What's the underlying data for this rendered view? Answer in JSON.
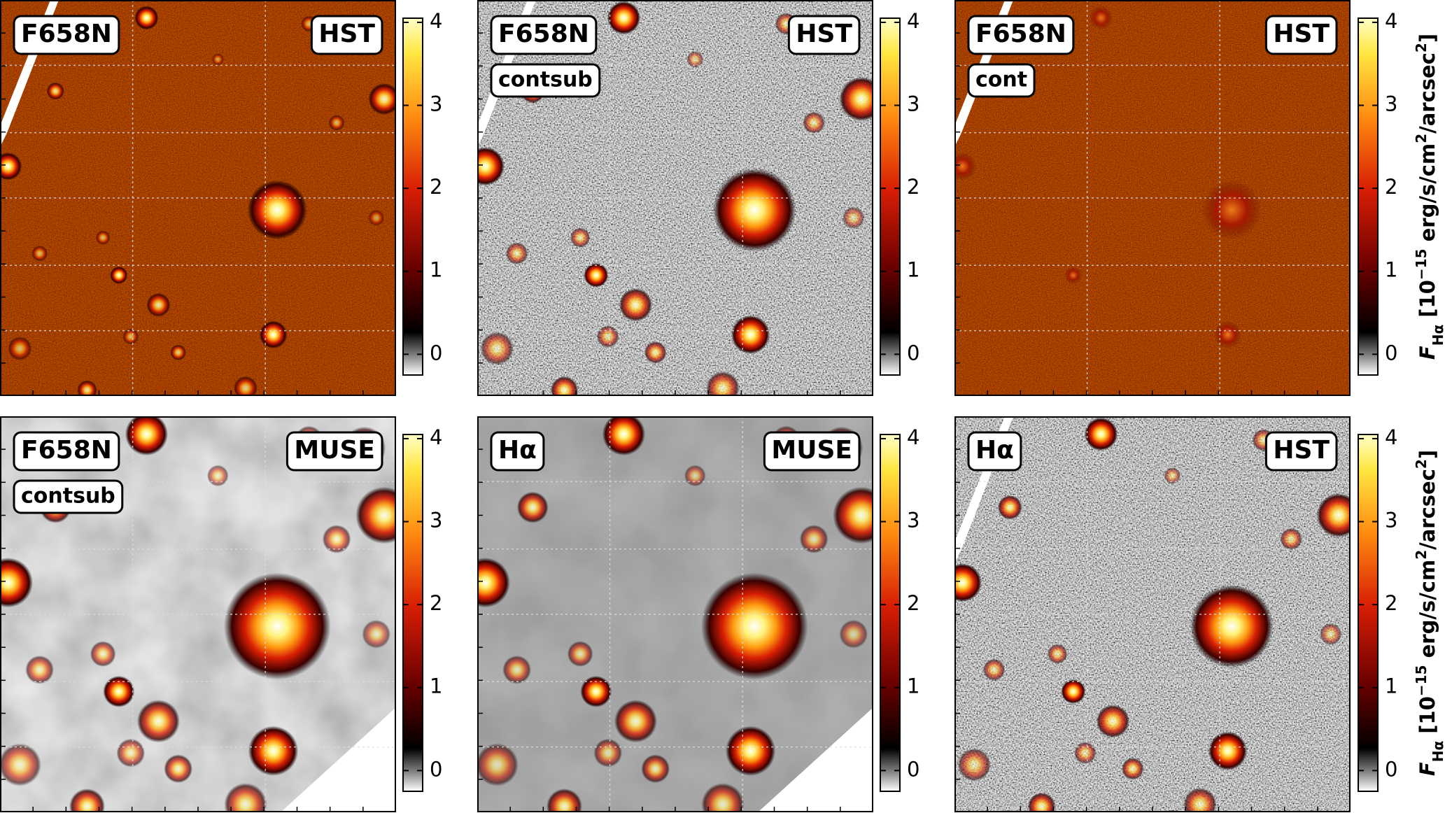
{
  "chart_data": [
    {
      "type": "image",
      "badge_left": "F658N",
      "badge_right": "HST",
      "background": "hst",
      "stripe": "top-left",
      "colorbar": {
        "lim": [
          -0.25,
          4.05
        ],
        "ticks": [
          0,
          1,
          2,
          3,
          4
        ]
      }
    },
    {
      "type": "image",
      "badge_left": "F658N",
      "badge_right": "HST",
      "badge_sub": "contsub",
      "background": "noise",
      "stripe": "top-left",
      "colorbar": {
        "lim": [
          -0.25,
          4.05
        ],
        "ticks": [
          0,
          1,
          2,
          3,
          4
        ]
      }
    },
    {
      "type": "image",
      "badge_left": "F658N",
      "badge_right": "HST",
      "badge_sub": "cont",
      "background": "cont",
      "stripe": "top-left",
      "colorbar": {
        "lim": [
          -0.25,
          4.05
        ],
        "ticks": [
          0,
          1,
          2,
          3,
          4
        ],
        "label": [
          {
            "text": "F",
            "style": "italic"
          },
          {
            "text": "Hα",
            "style": "sub"
          },
          {
            "text": " [10"
          },
          {
            "text": "−15",
            "style": "sup"
          },
          {
            "text": " erg/s/cm"
          },
          {
            "text": "2",
            "style": "sup"
          },
          {
            "text": "/arcsec"
          },
          {
            "text": "2",
            "style": "sup"
          },
          {
            "text": "]"
          }
        ]
      }
    },
    {
      "type": "image",
      "badge_left": "F658N",
      "badge_right": "MUSE",
      "badge_sub": "contsub",
      "background": "muse",
      "stripe": "bottom-right",
      "colorbar": {
        "lim": [
          -0.25,
          4.05
        ],
        "ticks": [
          0,
          1,
          2,
          3,
          4
        ]
      }
    },
    {
      "type": "image",
      "badge_left": "Hα",
      "badge_right": "MUSE",
      "background": "muse-flat",
      "stripe": "bottom-right",
      "colorbar": {
        "lim": [
          -0.25,
          4.05
        ],
        "ticks": [
          0,
          1,
          2,
          3,
          4
        ]
      }
    },
    {
      "type": "image",
      "badge_left": "Hα",
      "badge_right": "HST",
      "background": "noise",
      "stripe": "top-left",
      "colorbar": {
        "lim": [
          -0.25,
          4.05
        ],
        "ticks": [
          0,
          1,
          2,
          3,
          4
        ],
        "label": [
          {
            "text": "F",
            "style": "italic"
          },
          {
            "text": "Hα",
            "style": "sub"
          },
          {
            "text": " [10"
          },
          {
            "text": "−15",
            "style": "sup"
          },
          {
            "text": " erg/s/cm"
          },
          {
            "text": "2",
            "style": "sup"
          },
          {
            "text": "/arcsec"
          },
          {
            "text": "2",
            "style": "sup"
          },
          {
            "text": "]"
          }
        ]
      }
    }
  ]
}
